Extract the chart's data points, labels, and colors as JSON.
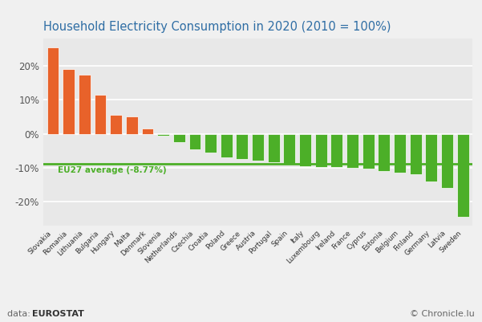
{
  "title": "Household Electricity Consumption in 2020 (2010 = 100%)",
  "categories": [
    "Slovakia",
    "Romania",
    "Lithuania",
    "Bulgaria",
    "Hungary",
    "Malta",
    "Denmark",
    "Slovenia",
    "Netherlands",
    "Czechia",
    "Croatia",
    "Poland",
    "Greece",
    "Austria",
    "Portugal",
    "Spain",
    "Italy",
    "Luxembourg",
    "Ireland",
    "France",
    "Cyprus",
    "Estonia",
    "Belgium",
    "Finland",
    "Germany",
    "Latvia",
    "Sweden"
  ],
  "values": [
    25.5,
    19.0,
    17.5,
    11.5,
    5.5,
    5.0,
    1.5,
    -0.5,
    -2.5,
    -4.5,
    -5.5,
    -7.0,
    -7.5,
    -8.0,
    -8.5,
    -9.0,
    -9.5,
    -9.8,
    -9.8,
    -10.0,
    -10.2,
    -11.0,
    -11.5,
    -12.0,
    -14.0,
    -16.0,
    -24.5
  ],
  "eu27_avg": -8.77,
  "positive_color": "#E8622A",
  "negative_color": "#4CAF28",
  "bg_color": "#f0f0f0",
  "plot_bg_color": "#e8e8e8",
  "title_color": "#2E6DA4",
  "eu_avg_color": "#4CAF28",
  "footer_left_plain": "data: ",
  "footer_left_bold": "EUROSTAT",
  "footer_right": "© Chronicle.lu",
  "ylim_min": -27,
  "ylim_max": 28,
  "yticks": [
    -20,
    -10,
    0,
    10,
    20
  ],
  "ytick_labels": [
    "-20%",
    "-10%",
    "0%",
    "10%",
    "20%"
  ]
}
